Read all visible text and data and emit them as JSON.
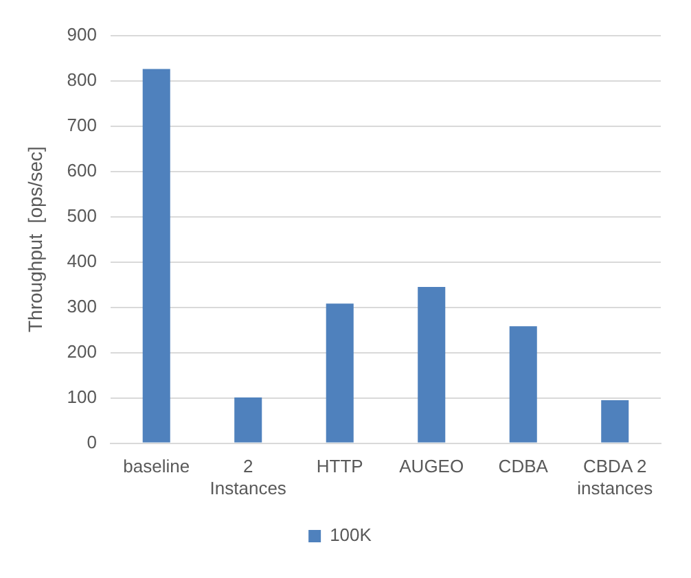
{
  "chart_data": {
    "type": "bar",
    "ylabel": "Throughput  [ops/sec]",
    "categories": [
      "baseline",
      "2 Instances",
      "HTTP",
      "AUGEO",
      "CDBA",
      "CBDA 2 instances"
    ],
    "series": [
      {
        "name": "100K",
        "color": "#4f81bd",
        "values": [
          826,
          101,
          308,
          345,
          258,
          95
        ]
      }
    ],
    "ylim": [
      0,
      900
    ],
    "yticks": [
      0,
      100,
      200,
      300,
      400,
      500,
      600,
      700,
      800,
      900
    ],
    "grid": "y",
    "legend": "bottom"
  }
}
